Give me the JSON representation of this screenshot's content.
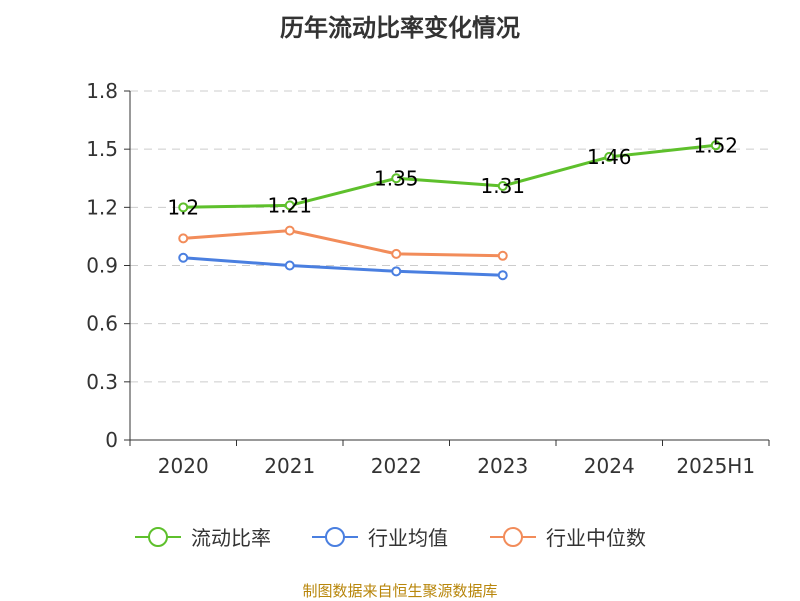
{
  "title": "历年流动比率变化情况",
  "source": "制图数据来自恒生聚源数据库",
  "colors": {
    "current_ratio": "#5ec02c",
    "industry_mean": "#4a7fe0",
    "industry_median": "#f28c5a",
    "grid": "#cccccc",
    "axis": "#333333"
  },
  "chart_data": {
    "type": "line",
    "categories": [
      "2020",
      "2021",
      "2022",
      "2023",
      "2024",
      "2025H1"
    ],
    "ylim": [
      0,
      1.8
    ],
    "yticks": [
      0,
      0.3,
      0.6,
      0.9,
      1.2,
      1.5,
      1.8
    ],
    "ytick_labels": [
      "0",
      "0.3",
      "0.6",
      "0.9",
      "1.2",
      "1.5",
      "1.8"
    ],
    "grid": true,
    "legend_position": "bottom",
    "series": [
      {
        "key": "current_ratio",
        "name": "流动比率",
        "values": [
          1.2,
          1.21,
          1.35,
          1.31,
          1.46,
          1.52
        ],
        "labels": [
          "1.2",
          "1.21",
          "1.35",
          "1.31",
          "1.46",
          "1.52"
        ]
      },
      {
        "key": "industry_mean",
        "name": "行业均值",
        "values": [
          0.94,
          0.9,
          0.87,
          0.85,
          null,
          null
        ]
      },
      {
        "key": "industry_median",
        "name": "行业中位数",
        "values": [
          1.04,
          1.08,
          0.96,
          0.95,
          null,
          null
        ]
      }
    ]
  }
}
